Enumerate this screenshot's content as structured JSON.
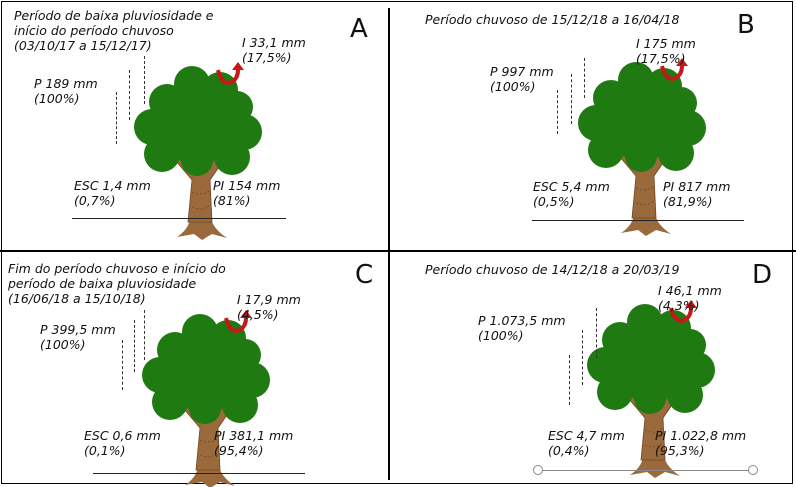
{
  "panels": [
    {
      "letter": "A",
      "title": "Período de baixa pluviosidade e\ninício do período chuvoso\n(03/10/17 a 15/12/17)",
      "I": "I 33,1 mm\n(17,5%)",
      "P": "P 189 mm\n(100%)",
      "ESC": "ESC 1,4 mm\n(0,7%)",
      "PI": "PI 154 mm\n(81%)"
    },
    {
      "letter": "B",
      "title": "Período chuvoso de 15/12/18 a 16/04/18",
      "I": "I 175 mm\n(17,5%)",
      "P": "P 997 mm\n(100%)",
      "ESC": "ESC 5,4 mm\n(0,5%)",
      "PI": "PI 817 mm\n(81,9%)"
    },
    {
      "letter": "C",
      "title": "Fim do período chuvoso e início do\nperíodo de baixa pluviosidade\n(16/06/18 a 15/10/18)",
      "I": "I 17,9 mm\n(4,5%)",
      "P": "P 399,5 mm\n(100%)",
      "ESC": "ESC 0,6 mm\n(0,1%)",
      "PI": "PI 381,1 mm\n(95,4%)"
    },
    {
      "letter": "D",
      "title": "Período chuvoso de 14/12/18 a 20/03/19",
      "I": "I 46,1 mm\n(4,3%)",
      "P": "P 1.073,5 mm\n(100%)",
      "ESC": "ESC 4,7 mm\n(0,4%)",
      "PI": "PI 1.022,8 mm\n(95,3%)"
    }
  ],
  "colors": {
    "crown": "#1f7a12",
    "trunk": "#9b6a3c",
    "arrow": "#c8161a"
  }
}
